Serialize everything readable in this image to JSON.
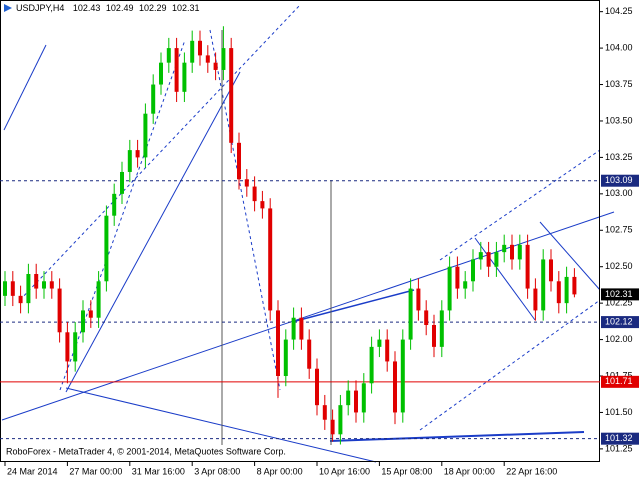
{
  "chart_data": {
    "type": "candlestick",
    "title": "USDJPY,H4",
    "annotation": "RoboForex - MetaTrader 4, © 2001-2014, MetaQuotes Software Corp.",
    "up_color": "#00c000",
    "down_color": "#e00000",
    "categories": [
      "24 Mar 2014",
      null,
      null,
      null,
      null,
      null,
      null,
      null,
      "27 Mar 00:00",
      null,
      null,
      null,
      null,
      null,
      null,
      null,
      "31 Mar 16:00",
      null,
      null,
      null,
      null,
      null,
      null,
      null,
      "3 Apr 08:00",
      null,
      null,
      null,
      null,
      null,
      null,
      null,
      "8 Apr 00:00",
      null,
      null,
      null,
      null,
      null,
      null,
      null,
      "10 Apr 16:00",
      null,
      null,
      null,
      null,
      null,
      null,
      null,
      "15 Apr 08:00",
      null,
      null,
      null,
      null,
      null,
      null,
      null,
      "18 Apr 00:00",
      null,
      null,
      null,
      null,
      null,
      null,
      null,
      "22 Apr 16:00",
      null,
      null,
      null,
      null,
      null,
      null,
      null,
      null,
      null
    ],
    "open": [
      102.3,
      102.4,
      102.3,
      102.25,
      102.45,
      102.35,
      102.4,
      102.35,
      102.05,
      101.85,
      102.05,
      102.2,
      102.15,
      102.4,
      102.85,
      103.0,
      103.15,
      103.3,
      103.25,
      103.55,
      103.75,
      103.9,
      104.0,
      103.7,
      103.9,
      104.05,
      103.95,
      103.9,
      103.85,
      104.0,
      103.35,
      103.1,
      103.05,
      102.95,
      102.9,
      102.2,
      101.75,
      102.0,
      102.15,
      102.0,
      101.8,
      101.55,
      101.45,
      101.35,
      101.55,
      101.65,
      101.5,
      101.7,
      101.95,
      102.0,
      101.85,
      101.5,
      102.0,
      102.35,
      102.2,
      102.1,
      101.95,
      102.2,
      102.5,
      102.35,
      102.4,
      102.55,
      102.6,
      102.5,
      102.6,
      102.65,
      102.55,
      102.65,
      102.35,
      102.2,
      102.55,
      102.4,
      102.25,
      102.43
    ],
    "high": [
      102.47,
      102.47,
      102.37,
      102.52,
      102.52,
      102.47,
      102.47,
      102.42,
      102.12,
      102.12,
      102.27,
      102.27,
      102.47,
      102.92,
      103.07,
      103.22,
      103.37,
      103.37,
      103.62,
      103.82,
      103.97,
      104.07,
      104.07,
      103.97,
      104.12,
      104.12,
      104.02,
      103.97,
      104.15,
      104.07,
      103.42,
      103.17,
      103.12,
      103.02,
      102.97,
      102.27,
      102.07,
      102.22,
      102.22,
      102.07,
      101.87,
      101.62,
      101.52,
      101.62,
      101.72,
      101.72,
      101.77,
      102.02,
      102.07,
      102.07,
      101.92,
      102.07,
      102.42,
      102.42,
      102.27,
      102.17,
      102.27,
      102.57,
      102.57,
      102.47,
      102.62,
      102.67,
      102.67,
      102.67,
      102.72,
      102.72,
      102.72,
      102.72,
      102.42,
      102.62,
      102.62,
      102.47,
      102.5,
      102.49
    ],
    "low": [
      102.23,
      102.23,
      102.18,
      102.18,
      102.28,
      102.28,
      102.28,
      101.98,
      101.7,
      101.78,
      101.98,
      102.08,
      102.08,
      102.33,
      102.78,
      102.93,
      103.08,
      103.18,
      103.18,
      103.48,
      103.68,
      103.83,
      103.63,
      103.63,
      103.83,
      103.88,
      103.83,
      103.78,
      103.78,
      103.28,
      103.03,
      102.98,
      102.88,
      102.83,
      102.13,
      101.6,
      101.68,
      101.93,
      101.93,
      101.73,
      101.48,
      101.38,
      101.3,
      101.28,
      101.48,
      101.43,
      101.43,
      101.63,
      101.88,
      101.78,
      101.42,
      101.43,
      101.93,
      102.13,
      102.03,
      101.88,
      101.88,
      102.13,
      102.28,
      102.28,
      102.33,
      102.48,
      102.43,
      102.43,
      102.53,
      102.48,
      102.48,
      102.28,
      102.13,
      102.13,
      102.33,
      102.18,
      102.18,
      102.29
    ],
    "close": [
      102.4,
      102.3,
      102.25,
      102.45,
      102.35,
      102.4,
      102.35,
      102.05,
      101.85,
      102.05,
      102.2,
      102.15,
      102.4,
      102.85,
      103.0,
      103.15,
      103.3,
      103.25,
      103.55,
      103.75,
      103.9,
      104.0,
      103.7,
      103.9,
      104.05,
      103.95,
      103.9,
      103.85,
      104.0,
      103.35,
      103.1,
      103.05,
      102.95,
      102.9,
      102.2,
      101.75,
      102.0,
      102.15,
      102.0,
      101.8,
      101.55,
      101.45,
      101.35,
      101.55,
      101.65,
      101.5,
      101.7,
      101.95,
      102.0,
      101.85,
      101.5,
      102.0,
      102.35,
      102.2,
      102.1,
      101.95,
      102.2,
      102.5,
      102.35,
      102.4,
      102.55,
      102.6,
      102.5,
      102.6,
      102.65,
      102.55,
      102.65,
      102.35,
      102.2,
      102.55,
      102.4,
      102.25,
      102.43,
      102.31
    ],
    "ylim": [
      101.16,
      104.33
    ],
    "yticks": [
      104.25,
      {
        "value": 104,
        "label": "104.00"
      },
      103.75,
      {
        "value": 103.5,
        "label": "103.50"
      },
      103.25,
      {
        "value": 103,
        "label": "103.00"
      },
      102.75,
      {
        "value": 102.5,
        "label": "102.50"
      },
      102.25,
      {
        "value": 102,
        "label": "102.00"
      },
      101.75,
      {
        "value": 101.5,
        "label": "101.50"
      },
      101.25
    ],
    "levels": [
      {
        "value": 103.09,
        "color": "#1a2a80",
        "dashed": true
      },
      {
        "value": 102.12,
        "color": "#1a2a80",
        "dashed": true
      },
      {
        "value": 101.71,
        "color": "#e00000",
        "dashed": false
      },
      {
        "value": 101.32,
        "color": "#1a2a80",
        "dashed": true
      }
    ],
    "current_color": "#000000",
    "grid": false
  }
}
